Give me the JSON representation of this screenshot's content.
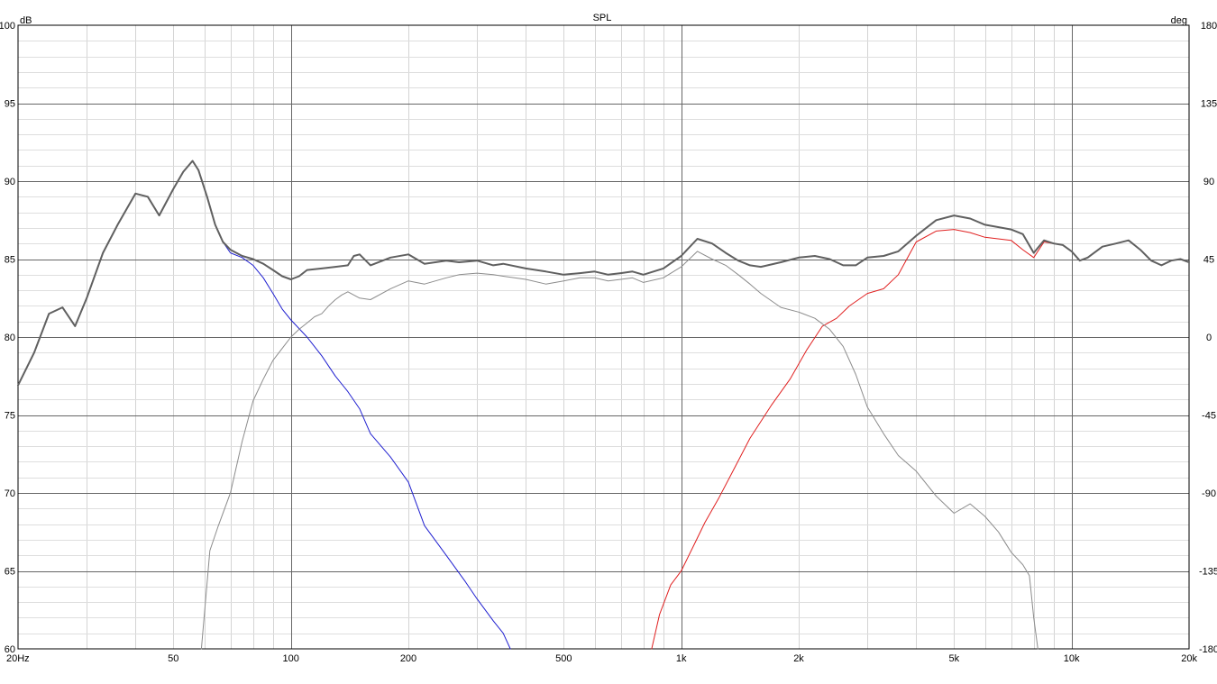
{
  "chart_data": {
    "type": "line",
    "title": "SPL",
    "ylabel_left": "dB",
    "ylabel_right": "deg",
    "x_scale": "log",
    "xlim": [
      20,
      20000
    ],
    "ylim": [
      60,
      100
    ],
    "ylim_right": [
      -180,
      180
    ],
    "grid": true,
    "x_tick_labels": [
      {
        "v": 20,
        "label": "20Hz"
      },
      {
        "v": 50,
        "label": "50"
      },
      {
        "v": 100,
        "label": "100"
      },
      {
        "v": 200,
        "label": "200"
      },
      {
        "v": 500,
        "label": "500"
      },
      {
        "v": 1000,
        "label": "1k"
      },
      {
        "v": 2000,
        "label": "2k"
      },
      {
        "v": 5000,
        "label": "5k"
      },
      {
        "v": 10000,
        "label": "10k"
      },
      {
        "v": 20000,
        "label": "20k"
      }
    ],
    "y_ticks_left": [
      100,
      95,
      90,
      85,
      80,
      75,
      70,
      65,
      60
    ],
    "y_ticks_right": [
      180,
      135,
      90,
      45,
      0,
      -45,
      -90,
      -135,
      -180
    ],
    "series": [
      {
        "color": "#2020d0",
        "width": 1,
        "x": [
          20,
          22,
          24,
          26,
          28,
          30,
          33,
          36,
          40,
          43,
          46,
          50,
          53,
          56,
          58,
          61,
          64,
          67,
          70,
          75,
          80,
          85,
          90,
          95,
          100,
          110,
          120,
          130,
          140,
          150,
          160,
          180,
          200,
          220,
          250,
          280,
          300,
          330,
          350,
          365
        ],
        "y": [
          76.9,
          79.0,
          81.5,
          81.9,
          80.7,
          82.5,
          85.4,
          87.2,
          89.2,
          89.0,
          87.8,
          89.5,
          90.6,
          91.3,
          90.7,
          89.0,
          87.2,
          86.1,
          85.4,
          85.1,
          84.6,
          83.8,
          82.8,
          81.8,
          81.1,
          80.0,
          78.8,
          77.5,
          76.5,
          75.4,
          73.8,
          72.3,
          70.7,
          67.9,
          66.0,
          64.3,
          63.2,
          61.8,
          61.0,
          60.0
        ]
      },
      {
        "color": "#e02020",
        "width": 1,
        "x": [
          840,
          880,
          940,
          1000,
          1080,
          1150,
          1250,
          1350,
          1500,
          1700,
          1900,
          2100,
          2300,
          2500,
          2700,
          3000,
          3300,
          3600,
          4000,
          4500,
          5000,
          5500,
          6000,
          7000,
          7500,
          8000,
          8500,
          9000,
          9500,
          10000,
          10500,
          11000,
          12000,
          13000,
          14000,
          15000,
          16000,
          17000,
          18000,
          19000,
          20000
        ],
        "y": [
          60.0,
          62.2,
          64.1,
          65.0,
          66.7,
          68.1,
          69.7,
          71.3,
          73.5,
          75.6,
          77.3,
          79.2,
          80.7,
          81.2,
          82.0,
          82.8,
          83.1,
          84.0,
          86.1,
          86.8,
          86.9,
          86.7,
          86.4,
          86.2,
          85.6,
          85.1,
          86.1,
          86.0,
          85.9,
          85.5,
          84.9,
          85.1,
          85.8,
          86.0,
          86.2,
          85.6,
          84.9,
          84.6,
          84.9,
          85.0,
          84.8
        ]
      },
      {
        "color": "#8c8c8c",
        "width": 1,
        "x": [
          59,
          62,
          65,
          70,
          75,
          80,
          85,
          90,
          100,
          105,
          110,
          115,
          120,
          125,
          130,
          135,
          140,
          150,
          160,
          180,
          200,
          220,
          250,
          270,
          300,
          330,
          350,
          400,
          450,
          500,
          550,
          600,
          650,
          700,
          750,
          800,
          900,
          1000,
          1100,
          1200,
          1300,
          1400,
          1500,
          1600,
          1800,
          2000,
          2200,
          2400,
          2600,
          2800,
          3000,
          3300,
          3600,
          4000,
          4500,
          5000,
          5500,
          6000,
          6500,
          7000,
          7500,
          7800,
          8000,
          8200
        ],
        "y": [
          60.0,
          66.3,
          67.8,
          70.0,
          73.3,
          75.9,
          77.3,
          78.5,
          80.0,
          80.5,
          80.9,
          81.3,
          81.5,
          82.0,
          82.4,
          82.7,
          82.9,
          82.5,
          82.4,
          83.1,
          83.6,
          83.4,
          83.8,
          84.0,
          84.1,
          84.0,
          83.9,
          83.7,
          83.4,
          83.6,
          83.8,
          83.8,
          83.6,
          83.7,
          83.8,
          83.5,
          83.8,
          84.5,
          85.5,
          85.0,
          84.6,
          84.0,
          83.4,
          82.8,
          81.9,
          81.6,
          81.2,
          80.5,
          79.4,
          77.6,
          75.5,
          73.8,
          72.4,
          71.4,
          69.8,
          68.7,
          69.3,
          68.5,
          67.5,
          66.2,
          65.4,
          64.7,
          62.0,
          60.0
        ]
      },
      {
        "color": "#606060",
        "width": 2,
        "x": [
          20,
          22,
          24,
          26,
          28,
          30,
          33,
          36,
          40,
          43,
          46,
          50,
          53,
          56,
          58,
          61,
          64,
          67,
          70,
          75,
          80,
          85,
          90,
          95,
          100,
          105,
          110,
          120,
          130,
          140,
          145,
          150,
          160,
          180,
          200,
          220,
          250,
          270,
          300,
          330,
          350,
          400,
          450,
          500,
          550,
          600,
          650,
          700,
          750,
          800,
          900,
          1000,
          1100,
          1200,
          1300,
          1400,
          1500,
          1600,
          1800,
          2000,
          2200,
          2400,
          2600,
          2800,
          3000,
          3300,
          3600,
          4000,
          4500,
          5000,
          5500,
          6000,
          7000,
          7500,
          8000,
          8500,
          9000,
          9500,
          10000,
          10500,
          11000,
          12000,
          13000,
          14000,
          15000,
          16000,
          17000,
          18000,
          19000,
          20000
        ],
        "y": [
          76.9,
          79.0,
          81.5,
          81.9,
          80.7,
          82.5,
          85.4,
          87.2,
          89.2,
          89.0,
          87.8,
          89.5,
          90.6,
          91.3,
          90.7,
          89.0,
          87.2,
          86.1,
          85.6,
          85.2,
          85.0,
          84.7,
          84.3,
          83.9,
          83.7,
          83.9,
          84.3,
          84.4,
          84.5,
          84.6,
          85.2,
          85.3,
          84.6,
          85.1,
          85.3,
          84.7,
          84.9,
          84.8,
          84.9,
          84.6,
          84.7,
          84.4,
          84.2,
          84.0,
          84.1,
          84.2,
          84.0,
          84.1,
          84.2,
          84.0,
          84.4,
          85.2,
          86.3,
          86.0,
          85.4,
          84.9,
          84.6,
          84.5,
          84.8,
          85.1,
          85.2,
          85.0,
          84.6,
          84.6,
          85.1,
          85.2,
          85.5,
          86.5,
          87.5,
          87.8,
          87.6,
          87.2,
          86.9,
          86.6,
          85.4,
          86.2,
          86.0,
          85.9,
          85.5,
          84.9,
          85.1,
          85.8,
          86.0,
          86.2,
          85.6,
          84.9,
          84.6,
          84.9,
          85.0,
          84.8
        ]
      }
    ]
  }
}
